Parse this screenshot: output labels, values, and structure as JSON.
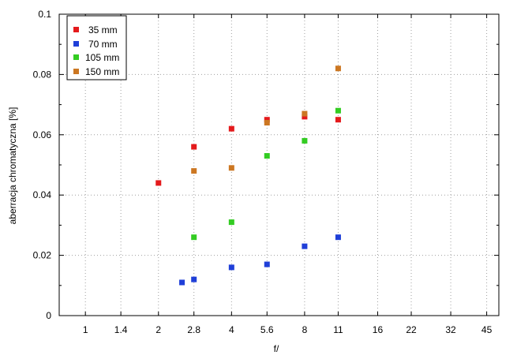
{
  "chart_data": {
    "type": "scatter",
    "xlabel": "f/",
    "ylabel": "aberracja chromatyczna [%]",
    "x_scale": "log2",
    "x_ticks": [
      1,
      1.4,
      2,
      2.8,
      4,
      5.6,
      8,
      11,
      16,
      22,
      32,
      45
    ],
    "x_tick_labels": [
      "1",
      "1.4",
      "2",
      "2.8",
      "4",
      "5.6",
      "8",
      "11",
      "16",
      "22",
      "32",
      "45"
    ],
    "xlim": [
      0.78,
      50.5
    ],
    "ylim": [
      0,
      0.1
    ],
    "y_ticks": [
      0,
      0.02,
      0.04,
      0.06,
      0.08,
      0.1
    ],
    "y_tick_labels": [
      "0",
      "0.02",
      "0.04",
      "0.06",
      "0.08",
      "0.1"
    ],
    "grid": true,
    "legend_position": "top-left",
    "series": [
      {
        "name": "35 mm",
        "color": "#e41a1c",
        "marker": "square",
        "x": [
          2,
          2.8,
          4,
          5.6,
          8,
          11
        ],
        "y": [
          0.044,
          0.056,
          0.062,
          0.065,
          0.066,
          0.065
        ]
      },
      {
        "name": "70 mm",
        "color": "#1f3fd8",
        "marker": "square",
        "x": [
          2.5,
          2.8,
          4,
          5.6,
          8,
          11
        ],
        "y": [
          0.011,
          0.012,
          0.016,
          0.017,
          0.023,
          0.026
        ]
      },
      {
        "name": "105 mm",
        "color": "#33cc22",
        "marker": "square",
        "x": [
          2.8,
          4,
          5.6,
          8,
          11
        ],
        "y": [
          0.026,
          0.031,
          0.053,
          0.058,
          0.068
        ]
      },
      {
        "name": "150 mm",
        "color": "#cc7722",
        "marker": "square",
        "x": [
          2.8,
          4,
          5.6,
          8,
          11
        ],
        "y": [
          0.048,
          0.049,
          0.064,
          0.067,
          0.082
        ]
      }
    ]
  }
}
